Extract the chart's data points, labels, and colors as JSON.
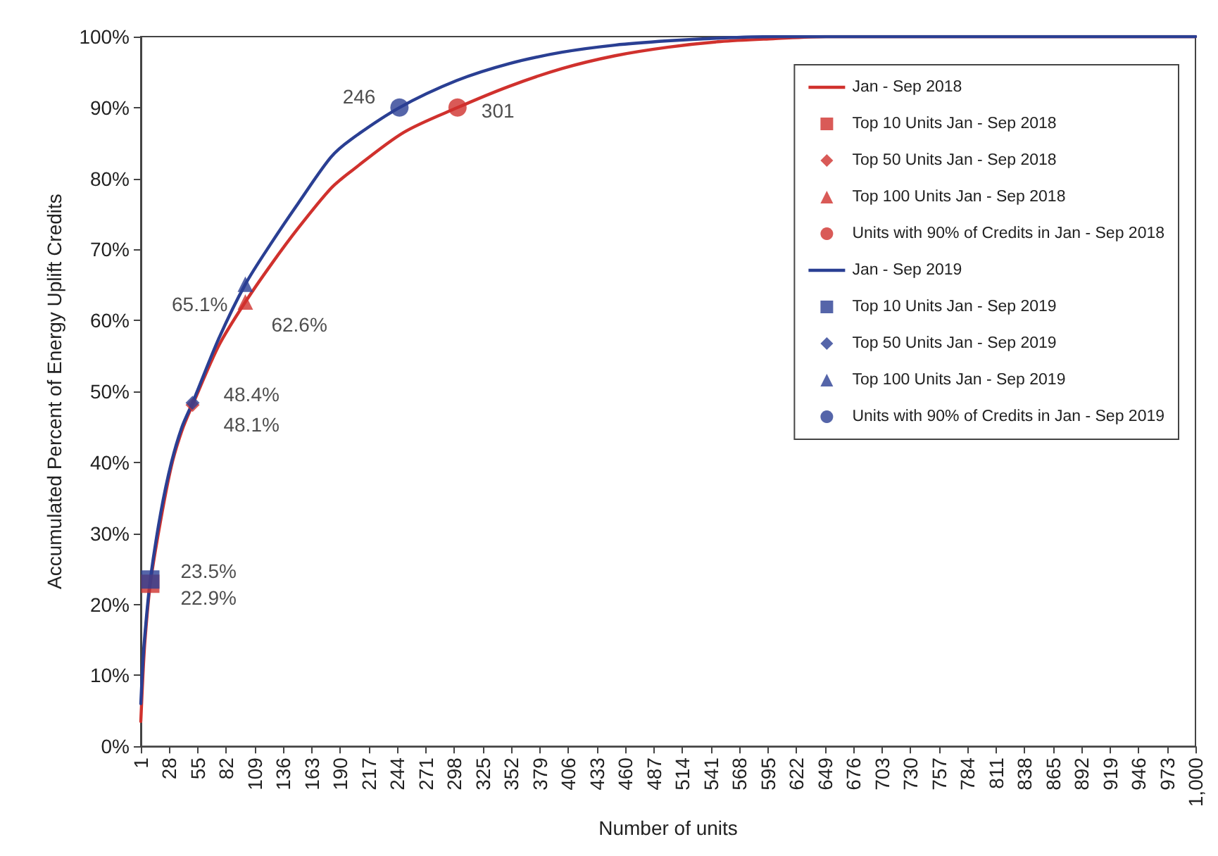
{
  "chart_data": {
    "type": "line",
    "xlabel": "Number of units",
    "ylabel": "Accumulated Percent of Energy Uplift Credits",
    "xlim": [
      1,
      1000
    ],
    "xticks": [
      1,
      28,
      55,
      82,
      109,
      136,
      163,
      190,
      217,
      244,
      271,
      298,
      325,
      352,
      379,
      406,
      433,
      460,
      487,
      514,
      541,
      568,
      595,
      622,
      649,
      676,
      703,
      730,
      757,
      784,
      811,
      838,
      865,
      892,
      919,
      946,
      973,
      {
        "value": 1000,
        "label": "1,000"
      }
    ],
    "ylim": [
      0,
      100
    ],
    "yticks": [
      {
        "value": 0,
        "label": "0%"
      },
      {
        "value": 10,
        "label": "10%"
      },
      {
        "value": 20,
        "label": "20%"
      },
      {
        "value": 30,
        "label": "30%"
      },
      {
        "value": 40,
        "label": "40%"
      },
      {
        "value": 50,
        "label": "50%"
      },
      {
        "value": 60,
        "label": "60%"
      },
      {
        "value": 70,
        "label": "70%"
      },
      {
        "value": 80,
        "label": "80%"
      },
      {
        "value": 90,
        "label": "90%"
      },
      {
        "value": 100,
        "label": "100%"
      }
    ],
    "grid": false,
    "legend": "top right",
    "series": [
      {
        "name": "Jan - Sep 2018",
        "color": "#d0312d",
        "marker": "none",
        "x": [
          1,
          3,
          5,
          10,
          20,
          30,
          40,
          50,
          75,
          100,
          125,
          150,
          181,
          200,
          250,
          301,
          350,
          400,
          450,
          500,
          550,
          600,
          650,
          1000
        ],
        "values": [
          3.5,
          10,
          15,
          22.9,
          32,
          39.5,
          44.5,
          48.1,
          56.5,
          62.6,
          68,
          73,
          78.6,
          81,
          86.5,
          90,
          93,
          95.5,
          97.3,
          98.5,
          99.3,
          99.7,
          100,
          100
        ]
      },
      {
        "name": "Top 10 Units Jan - Sep 2018",
        "type": "scatter",
        "color": "#d0312d",
        "marker": "square",
        "x": [
          10
        ],
        "values": [
          22.9
        ],
        "value_labels": [
          "22.9%"
        ]
      },
      {
        "name": "Top 50 Units Jan - Sep 2018",
        "type": "scatter",
        "color": "#d0312d",
        "marker": "diamond",
        "x": [
          50
        ],
        "values": [
          48.1
        ],
        "value_labels": [
          "48.1%"
        ]
      },
      {
        "name": "Top 100 Units Jan - Sep 2018",
        "type": "scatter",
        "color": "#d0312d",
        "marker": "triangle",
        "x": [
          100
        ],
        "values": [
          62.6
        ],
        "value_labels": [
          "62.6%"
        ]
      },
      {
        "name": "Units with 90% of Credits in Jan - Sep 2018",
        "type": "scatter",
        "color": "#d0312d",
        "marker": "circle",
        "x": [
          301
        ],
        "values": [
          90
        ]
      },
      {
        "name": "Jan - Sep 2019",
        "color": "#2a3f93",
        "marker": "none",
        "x": [
          1,
          3,
          5,
          10,
          20,
          30,
          40,
          50,
          75,
          100,
          125,
          150,
          181,
          200,
          246,
          300,
          350,
          400,
          450,
          500,
          550,
          600,
          1000
        ],
        "values": [
          6,
          12,
          16,
          23.5,
          33,
          40,
          45,
          48.4,
          57.5,
          65.1,
          71,
          76.5,
          83,
          85.5,
          90,
          93.8,
          96.2,
          97.8,
          98.8,
          99.4,
          99.8,
          100,
          100
        ]
      },
      {
        "name": "Top 10 Units Jan - Sep 2019",
        "type": "scatter",
        "color": "#2a3f93",
        "marker": "square",
        "x": [
          10
        ],
        "values": [
          23.5
        ],
        "value_labels": [
          "23.5%"
        ]
      },
      {
        "name": "Top 50 Units Jan - Sep 2019",
        "type": "scatter",
        "color": "#2a3f93",
        "marker": "diamond",
        "x": [
          50
        ],
        "values": [
          48.4
        ],
        "value_labels": [
          "48.4%"
        ]
      },
      {
        "name": "Top 100 Units Jan - Sep 2019",
        "type": "scatter",
        "color": "#2a3f93",
        "marker": "triangle",
        "x": [
          100
        ],
        "values": [
          65.1
        ],
        "value_labels": [
          "65.1%"
        ]
      },
      {
        "name": "Units with 90% of Credits in Jan - Sep 2019",
        "type": "scatter",
        "color": "#2a3f93",
        "marker": "circle",
        "x": [
          246
        ],
        "values": [
          90
        ]
      }
    ],
    "annotations": [
      {
        "text": "301",
        "x": 301,
        "y": 90
      },
      {
        "text": "246",
        "x": 246,
        "y": 90
      }
    ]
  }
}
